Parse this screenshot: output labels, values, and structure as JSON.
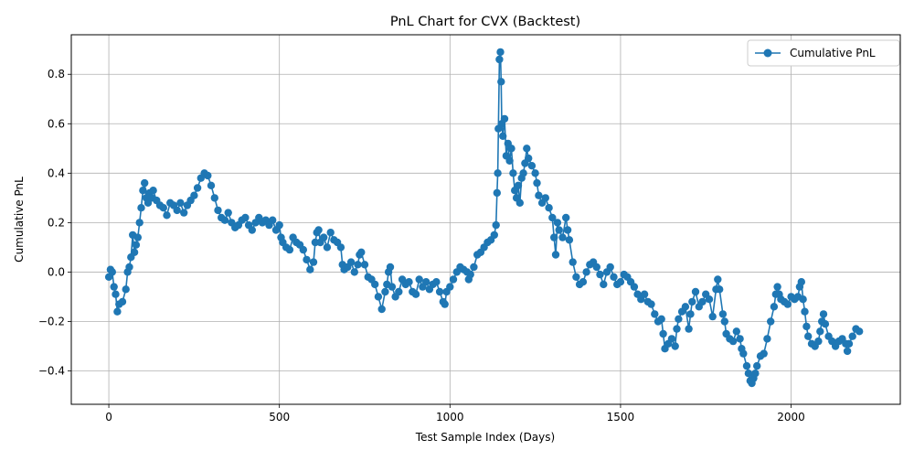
{
  "chart_data": {
    "type": "line",
    "title": "PnL Chart for CVX (Backtest)",
    "xlabel": "Test Sample Index (Days)",
    "ylabel": "Cumulative PnL",
    "xlim": [
      -110,
      2320
    ],
    "ylim": [
      -0.535,
      0.96
    ],
    "xticks": [
      0,
      500,
      1000,
      1500,
      2000
    ],
    "xtick_labels": [
      "0",
      "500",
      "1000",
      "1500",
      "2000"
    ],
    "yticks": [
      -0.4,
      -0.2,
      0.0,
      0.2,
      0.4,
      0.6,
      0.8
    ],
    "ytick_labels": [
      "−0.4",
      "−0.2",
      "0.0",
      "0.2",
      "0.4",
      "0.6",
      "0.8"
    ],
    "grid": true,
    "legend_position": "top-right",
    "series": [
      {
        "name": "Cumulative PnL",
        "color": "#1f77b4",
        "marker": "circle",
        "points": [
          [
            0,
            -0.02
          ],
          [
            5,
            0.01
          ],
          [
            10,
            0.0
          ],
          [
            15,
            -0.06
          ],
          [
            20,
            -0.09
          ],
          [
            25,
            -0.16
          ],
          [
            30,
            -0.13
          ],
          [
            40,
            -0.12
          ],
          [
            50,
            -0.07
          ],
          [
            55,
            0.0
          ],
          [
            60,
            0.02
          ],
          [
            65,
            0.06
          ],
          [
            70,
            0.15
          ],
          [
            75,
            0.08
          ],
          [
            80,
            0.11
          ],
          [
            85,
            0.14
          ],
          [
            90,
            0.2
          ],
          [
            95,
            0.26
          ],
          [
            100,
            0.33
          ],
          [
            105,
            0.36
          ],
          [
            110,
            0.3
          ],
          [
            115,
            0.28
          ],
          [
            120,
            0.32
          ],
          [
            125,
            0.3
          ],
          [
            130,
            0.33
          ],
          [
            140,
            0.29
          ],
          [
            150,
            0.27
          ],
          [
            160,
            0.26
          ],
          [
            170,
            0.23
          ],
          [
            180,
            0.28
          ],
          [
            190,
            0.27
          ],
          [
            200,
            0.25
          ],
          [
            210,
            0.28
          ],
          [
            220,
            0.24
          ],
          [
            230,
            0.27
          ],
          [
            240,
            0.29
          ],
          [
            250,
            0.31
          ],
          [
            260,
            0.34
          ],
          [
            270,
            0.38
          ],
          [
            280,
            0.4
          ],
          [
            290,
            0.39
          ],
          [
            300,
            0.35
          ],
          [
            310,
            0.3
          ],
          [
            320,
            0.25
          ],
          [
            330,
            0.22
          ],
          [
            340,
            0.21
          ],
          [
            350,
            0.24
          ],
          [
            360,
            0.2
          ],
          [
            370,
            0.18
          ],
          [
            380,
            0.19
          ],
          [
            390,
            0.21
          ],
          [
            400,
            0.22
          ],
          [
            410,
            0.19
          ],
          [
            420,
            0.17
          ],
          [
            430,
            0.2
          ],
          [
            440,
            0.22
          ],
          [
            450,
            0.2
          ],
          [
            460,
            0.21
          ],
          [
            470,
            0.19
          ],
          [
            480,
            0.21
          ],
          [
            490,
            0.17
          ],
          [
            500,
            0.19
          ],
          [
            505,
            0.14
          ],
          [
            510,
            0.12
          ],
          [
            520,
            0.1
          ],
          [
            530,
            0.09
          ],
          [
            540,
            0.14
          ],
          [
            550,
            0.12
          ],
          [
            560,
            0.11
          ],
          [
            570,
            0.09
          ],
          [
            580,
            0.05
          ],
          [
            590,
            0.01
          ],
          [
            600,
            0.04
          ],
          [
            605,
            0.12
          ],
          [
            610,
            0.16
          ],
          [
            615,
            0.17
          ],
          [
            620,
            0.12
          ],
          [
            630,
            0.14
          ],
          [
            640,
            0.1
          ],
          [
            650,
            0.16
          ],
          [
            660,
            0.13
          ],
          [
            670,
            0.12
          ],
          [
            680,
            0.1
          ],
          [
            685,
            0.03
          ],
          [
            690,
            0.01
          ],
          [
            700,
            0.02
          ],
          [
            710,
            0.04
          ],
          [
            720,
            0.0
          ],
          [
            730,
            0.03
          ],
          [
            735,
            0.07
          ],
          [
            740,
            0.08
          ],
          [
            750,
            0.03
          ],
          [
            760,
            -0.02
          ],
          [
            770,
            -0.03
          ],
          [
            780,
            -0.05
          ],
          [
            790,
            -0.1
          ],
          [
            800,
            -0.15
          ],
          [
            810,
            -0.08
          ],
          [
            815,
            -0.05
          ],
          [
            820,
            0.0
          ],
          [
            825,
            0.02
          ],
          [
            830,
            -0.06
          ],
          [
            840,
            -0.1
          ],
          [
            850,
            -0.08
          ],
          [
            860,
            -0.03
          ],
          [
            870,
            -0.05
          ],
          [
            880,
            -0.04
          ],
          [
            890,
            -0.08
          ],
          [
            900,
            -0.09
          ],
          [
            910,
            -0.03
          ],
          [
            920,
            -0.06
          ],
          [
            930,
            -0.04
          ],
          [
            940,
            -0.07
          ],
          [
            950,
            -0.05
          ],
          [
            960,
            -0.04
          ],
          [
            970,
            -0.08
          ],
          [
            980,
            -0.12
          ],
          [
            985,
            -0.13
          ],
          [
            990,
            -0.08
          ],
          [
            1000,
            -0.06
          ],
          [
            1010,
            -0.03
          ],
          [
            1020,
            0.0
          ],
          [
            1030,
            0.02
          ],
          [
            1040,
            0.01
          ],
          [
            1050,
            0.0
          ],
          [
            1055,
            -0.03
          ],
          [
            1060,
            -0.01
          ],
          [
            1070,
            0.02
          ],
          [
            1080,
            0.07
          ],
          [
            1090,
            0.08
          ],
          [
            1100,
            0.1
          ],
          [
            1110,
            0.12
          ],
          [
            1120,
            0.13
          ],
          [
            1130,
            0.15
          ],
          [
            1135,
            0.19
          ],
          [
            1138,
            0.32
          ],
          [
            1140,
            0.4
          ],
          [
            1142,
            0.58
          ],
          [
            1145,
            0.86
          ],
          [
            1148,
            0.89
          ],
          [
            1150,
            0.77
          ],
          [
            1152,
            0.6
          ],
          [
            1155,
            0.55
          ],
          [
            1160,
            0.62
          ],
          [
            1165,
            0.47
          ],
          [
            1170,
            0.52
          ],
          [
            1175,
            0.45
          ],
          [
            1180,
            0.5
          ],
          [
            1185,
            0.4
          ],
          [
            1190,
            0.33
          ],
          [
            1195,
            0.3
          ],
          [
            1200,
            0.35
          ],
          [
            1205,
            0.28
          ],
          [
            1210,
            0.38
          ],
          [
            1215,
            0.4
          ],
          [
            1220,
            0.44
          ],
          [
            1225,
            0.5
          ],
          [
            1230,
            0.46
          ],
          [
            1240,
            0.43
          ],
          [
            1250,
            0.4
          ],
          [
            1255,
            0.36
          ],
          [
            1260,
            0.31
          ],
          [
            1270,
            0.28
          ],
          [
            1280,
            0.3
          ],
          [
            1290,
            0.26
          ],
          [
            1300,
            0.22
          ],
          [
            1305,
            0.14
          ],
          [
            1310,
            0.07
          ],
          [
            1315,
            0.2
          ],
          [
            1320,
            0.17
          ],
          [
            1330,
            0.14
          ],
          [
            1340,
            0.22
          ],
          [
            1345,
            0.17
          ],
          [
            1350,
            0.13
          ],
          [
            1360,
            0.04
          ],
          [
            1370,
            -0.02
          ],
          [
            1380,
            -0.05
          ],
          [
            1390,
            -0.04
          ],
          [
            1400,
            0.0
          ],
          [
            1410,
            0.03
          ],
          [
            1420,
            0.04
          ],
          [
            1430,
            0.02
          ],
          [
            1440,
            -0.01
          ],
          [
            1450,
            -0.05
          ],
          [
            1460,
            0.0
          ],
          [
            1470,
            0.02
          ],
          [
            1480,
            -0.02
          ],
          [
            1490,
            -0.05
          ],
          [
            1500,
            -0.04
          ],
          [
            1510,
            -0.01
          ],
          [
            1520,
            -0.02
          ],
          [
            1530,
            -0.04
          ],
          [
            1540,
            -0.06
          ],
          [
            1550,
            -0.09
          ],
          [
            1560,
            -0.11
          ],
          [
            1570,
            -0.09
          ],
          [
            1580,
            -0.12
          ],
          [
            1590,
            -0.13
          ],
          [
            1600,
            -0.17
          ],
          [
            1610,
            -0.2
          ],
          [
            1620,
            -0.19
          ],
          [
            1625,
            -0.25
          ],
          [
            1630,
            -0.31
          ],
          [
            1640,
            -0.29
          ],
          [
            1650,
            -0.27
          ],
          [
            1660,
            -0.3
          ],
          [
            1665,
            -0.23
          ],
          [
            1670,
            -0.19
          ],
          [
            1680,
            -0.16
          ],
          [
            1690,
            -0.14
          ],
          [
            1700,
            -0.23
          ],
          [
            1705,
            -0.17
          ],
          [
            1710,
            -0.12
          ],
          [
            1720,
            -0.08
          ],
          [
            1730,
            -0.14
          ],
          [
            1740,
            -0.12
          ],
          [
            1750,
            -0.09
          ],
          [
            1760,
            -0.11
          ],
          [
            1770,
            -0.18
          ],
          [
            1780,
            -0.07
          ],
          [
            1785,
            -0.03
          ],
          [
            1790,
            -0.07
          ],
          [
            1800,
            -0.17
          ],
          [
            1805,
            -0.2
          ],
          [
            1810,
            -0.25
          ],
          [
            1820,
            -0.27
          ],
          [
            1830,
            -0.28
          ],
          [
            1840,
            -0.24
          ],
          [
            1850,
            -0.27
          ],
          [
            1855,
            -0.31
          ],
          [
            1860,
            -0.33
          ],
          [
            1870,
            -0.38
          ],
          [
            1875,
            -0.41
          ],
          [
            1880,
            -0.44
          ],
          [
            1885,
            -0.45
          ],
          [
            1890,
            -0.43
          ],
          [
            1895,
            -0.41
          ],
          [
            1900,
            -0.38
          ],
          [
            1910,
            -0.34
          ],
          [
            1920,
            -0.33
          ],
          [
            1930,
            -0.27
          ],
          [
            1940,
            -0.2
          ],
          [
            1950,
            -0.14
          ],
          [
            1955,
            -0.09
          ],
          [
            1960,
            -0.06
          ],
          [
            1965,
            -0.09
          ],
          [
            1970,
            -0.11
          ],
          [
            1980,
            -0.12
          ],
          [
            1990,
            -0.13
          ],
          [
            2000,
            -0.1
          ],
          [
            2010,
            -0.11
          ],
          [
            2020,
            -0.1
          ],
          [
            2025,
            -0.06
          ],
          [
            2030,
            -0.04
          ],
          [
            2035,
            -0.11
          ],
          [
            2040,
            -0.16
          ],
          [
            2045,
            -0.22
          ],
          [
            2050,
            -0.26
          ],
          [
            2060,
            -0.29
          ],
          [
            2070,
            -0.3
          ],
          [
            2080,
            -0.28
          ],
          [
            2085,
            -0.24
          ],
          [
            2090,
            -0.2
          ],
          [
            2095,
            -0.17
          ],
          [
            2100,
            -0.21
          ],
          [
            2110,
            -0.26
          ],
          [
            2120,
            -0.28
          ],
          [
            2130,
            -0.3
          ],
          [
            2140,
            -0.28
          ],
          [
            2150,
            -0.27
          ],
          [
            2160,
            -0.29
          ],
          [
            2165,
            -0.32
          ],
          [
            2170,
            -0.29
          ],
          [
            2180,
            -0.26
          ],
          [
            2190,
            -0.23
          ],
          [
            2200,
            -0.24
          ]
        ]
      }
    ]
  }
}
